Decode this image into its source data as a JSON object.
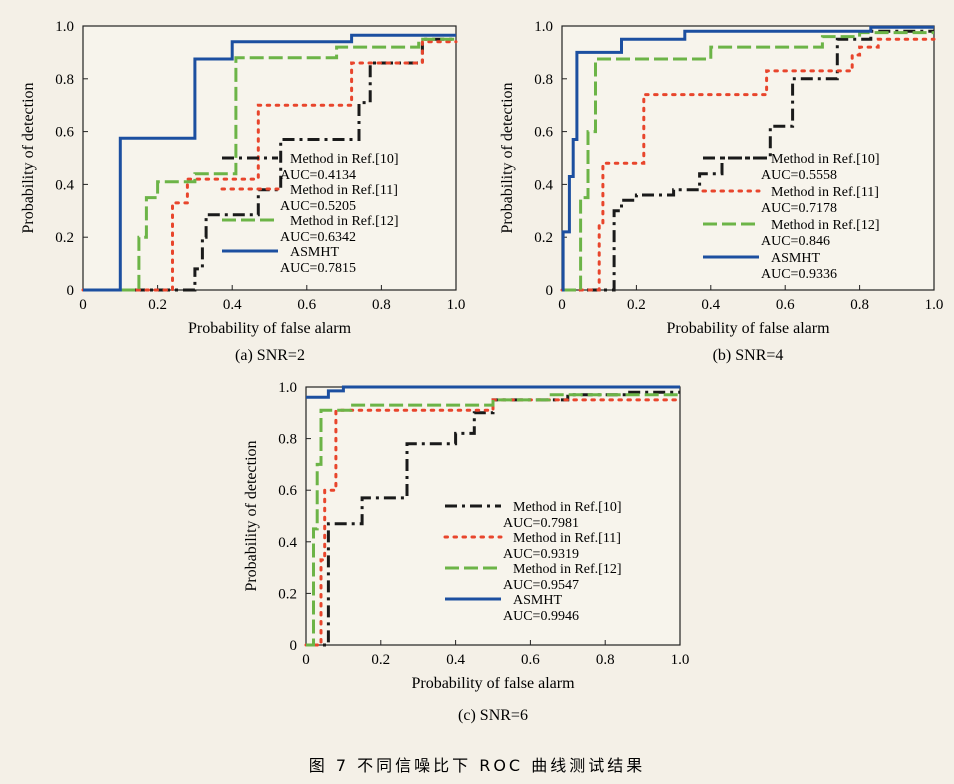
{
  "figure_caption": "图 7   不同信噪比下 ROC 曲线测试结果",
  "colors": {
    "ref10": "#1a1a1a",
    "ref11": "#e8452c",
    "ref12": "#6cb447",
    "asmht": "#1c4fa0",
    "frame": "#222222",
    "background": "#f4f0e7"
  },
  "chart_data": [
    {
      "type": "line",
      "caption": "(a) SNR=2",
      "xlabel": "Probability of false alarm",
      "ylabel": "Probability of detection",
      "xlim": [
        0,
        1
      ],
      "ylim": [
        0,
        1
      ],
      "xticks": [
        "0",
        "0.2",
        "0.4",
        "0.6",
        "0.8",
        "1.0"
      ],
      "yticks": [
        "0",
        "0.2",
        "0.4",
        "0.6",
        "0.8",
        "1.0"
      ],
      "grid": false,
      "legend_position": "right",
      "series": [
        {
          "name": "Method in Ref.[10]",
          "auc": "AUC=0.4134",
          "color_key": "ref10",
          "style": "dashdot",
          "points": [
            [
              0,
              0
            ],
            [
              0.3,
              0
            ],
            [
              0.3,
              0.08
            ],
            [
              0.32,
              0.08
            ],
            [
              0.32,
              0.2
            ],
            [
              0.33,
              0.2
            ],
            [
              0.33,
              0.285
            ],
            [
              0.47,
              0.285
            ],
            [
              0.47,
              0.38
            ],
            [
              0.53,
              0.38
            ],
            [
              0.53,
              0.57
            ],
            [
              0.74,
              0.57
            ],
            [
              0.74,
              0.71
            ],
            [
              0.77,
              0.71
            ],
            [
              0.77,
              0.86
            ],
            [
              0.91,
              0.86
            ],
            [
              0.91,
              0.95
            ],
            [
              1.0,
              0.95
            ]
          ]
        },
        {
          "name": "Method in Ref.[11]",
          "auc": "AUC=0.5205",
          "color_key": "ref11",
          "style": "dotted",
          "points": [
            [
              0,
              0
            ],
            [
              0.24,
              0
            ],
            [
              0.24,
              0.33
            ],
            [
              0.28,
              0.33
            ],
            [
              0.28,
              0.42
            ],
            [
              0.47,
              0.42
            ],
            [
              0.47,
              0.7
            ],
            [
              0.72,
              0.7
            ],
            [
              0.72,
              0.86
            ],
            [
              0.91,
              0.86
            ],
            [
              0.91,
              0.94
            ],
            [
              1.0,
              0.94
            ]
          ]
        },
        {
          "name": "Method in Ref.[12]",
          "auc": "AUC=0.6342",
          "color_key": "ref12",
          "style": "dashed",
          "points": [
            [
              0,
              0
            ],
            [
              0.15,
              0
            ],
            [
              0.15,
              0.2
            ],
            [
              0.17,
              0.2
            ],
            [
              0.17,
              0.35
            ],
            [
              0.2,
              0.35
            ],
            [
              0.2,
              0.41
            ],
            [
              0.3,
              0.41
            ],
            [
              0.3,
              0.44
            ],
            [
              0.41,
              0.44
            ],
            [
              0.41,
              0.88
            ],
            [
              0.68,
              0.88
            ],
            [
              0.68,
              0.92
            ],
            [
              0.9,
              0.92
            ],
            [
              0.9,
              0.95
            ],
            [
              1.0,
              0.95
            ]
          ]
        },
        {
          "name": "ASMHT",
          "auc": "AUC=0.7815",
          "color_key": "asmht",
          "style": "solid",
          "points": [
            [
              0,
              0
            ],
            [
              0.1,
              0
            ],
            [
              0.1,
              0.575
            ],
            [
              0.3,
              0.575
            ],
            [
              0.3,
              0.875
            ],
            [
              0.4,
              0.875
            ],
            [
              0.4,
              0.94
            ],
            [
              0.72,
              0.94
            ],
            [
              0.72,
              0.965
            ],
            [
              1.0,
              0.965
            ]
          ]
        }
      ]
    },
    {
      "type": "line",
      "caption": "(b) SNR=4",
      "xlabel": "Probability of false alarm",
      "ylabel": "Probability of detection",
      "xlim": [
        0,
        1
      ],
      "ylim": [
        0,
        1
      ],
      "xticks": [
        "0",
        "0.2",
        "0.4",
        "0.6",
        "0.8",
        "1.0"
      ],
      "yticks": [
        "0",
        "0.2",
        "0.4",
        "0.6",
        "0.8",
        "1.0"
      ],
      "grid": false,
      "legend_position": "right",
      "series": [
        {
          "name": "Method in Ref.[10]",
          "auc": "AUC=0.5558",
          "color_key": "ref10",
          "style": "dashdot",
          "points": [
            [
              0,
              0
            ],
            [
              0.14,
              0
            ],
            [
              0.14,
              0.3
            ],
            [
              0.16,
              0.3
            ],
            [
              0.16,
              0.34
            ],
            [
              0.2,
              0.34
            ],
            [
              0.2,
              0.36
            ],
            [
              0.3,
              0.36
            ],
            [
              0.3,
              0.38
            ],
            [
              0.37,
              0.38
            ],
            [
              0.37,
              0.44
            ],
            [
              0.43,
              0.44
            ],
            [
              0.43,
              0.5
            ],
            [
              0.56,
              0.5
            ],
            [
              0.56,
              0.62
            ],
            [
              0.62,
              0.62
            ],
            [
              0.62,
              0.8
            ],
            [
              0.74,
              0.8
            ],
            [
              0.74,
              0.95
            ],
            [
              0.83,
              0.95
            ],
            [
              0.83,
              0.98
            ],
            [
              1.0,
              0.98
            ]
          ]
        },
        {
          "name": "Method in Ref.[11]",
          "auc": "AUC=0.7178",
          "color_key": "ref11",
          "style": "dotted",
          "points": [
            [
              0,
              0
            ],
            [
              0.1,
              0
            ],
            [
              0.1,
              0.25
            ],
            [
              0.11,
              0.25
            ],
            [
              0.11,
              0.48
            ],
            [
              0.22,
              0.48
            ],
            [
              0.22,
              0.74
            ],
            [
              0.55,
              0.74
            ],
            [
              0.55,
              0.83
            ],
            [
              0.78,
              0.83
            ],
            [
              0.78,
              0.89
            ],
            [
              0.8,
              0.89
            ],
            [
              0.8,
              0.92
            ],
            [
              0.85,
              0.92
            ],
            [
              0.85,
              0.95
            ],
            [
              1.0,
              0.95
            ]
          ]
        },
        {
          "name": "Method in Ref.[12]",
          "auc": "AUC=0.846",
          "color_key": "ref12",
          "style": "dashed",
          "points": [
            [
              0,
              0
            ],
            [
              0.05,
              0
            ],
            [
              0.05,
              0.35
            ],
            [
              0.07,
              0.35
            ],
            [
              0.07,
              0.6
            ],
            [
              0.09,
              0.6
            ],
            [
              0.09,
              0.875
            ],
            [
              0.4,
              0.875
            ],
            [
              0.4,
              0.92
            ],
            [
              0.7,
              0.92
            ],
            [
              0.7,
              0.96
            ],
            [
              0.8,
              0.96
            ],
            [
              0.8,
              0.975
            ],
            [
              1.0,
              0.975
            ]
          ]
        },
        {
          "name": "ASMHT",
          "auc": "AUC=0.9336",
          "color_key": "asmht",
          "style": "solid",
          "points": [
            [
              0,
              0
            ],
            [
              0.003,
              0
            ],
            [
              0.003,
              0.22
            ],
            [
              0.02,
              0.22
            ],
            [
              0.02,
              0.43
            ],
            [
              0.03,
              0.43
            ],
            [
              0.03,
              0.57
            ],
            [
              0.04,
              0.57
            ],
            [
              0.04,
              0.9
            ],
            [
              0.16,
              0.9
            ],
            [
              0.16,
              0.95
            ],
            [
              0.33,
              0.95
            ],
            [
              0.33,
              0.98
            ],
            [
              0.83,
              0.98
            ],
            [
              0.83,
              0.995
            ],
            [
              1.0,
              0.995
            ]
          ]
        }
      ]
    },
    {
      "type": "line",
      "caption": "(c) SNR=6",
      "xlabel": "Probability of false alarm",
      "ylabel": "Probability of detection",
      "xlim": [
        0,
        1
      ],
      "ylim": [
        0,
        1
      ],
      "xticks": [
        "0",
        "0.2",
        "0.4",
        "0.6",
        "0.8",
        "1.0"
      ],
      "yticks": [
        "0",
        "0.2",
        "0.4",
        "0.6",
        "0.8",
        "1.0"
      ],
      "grid": false,
      "legend_position": "right",
      "series": [
        {
          "name": "Method in Ref.[10]",
          "auc": "AUC=0.7981",
          "color_key": "ref10",
          "style": "dashdot",
          "points": [
            [
              0,
              0
            ],
            [
              0.06,
              0
            ],
            [
              0.06,
              0.47
            ],
            [
              0.15,
              0.47
            ],
            [
              0.15,
              0.57
            ],
            [
              0.27,
              0.57
            ],
            [
              0.27,
              0.78
            ],
            [
              0.4,
              0.78
            ],
            [
              0.4,
              0.82
            ],
            [
              0.45,
              0.82
            ],
            [
              0.45,
              0.9
            ],
            [
              0.5,
              0.9
            ],
            [
              0.5,
              0.95
            ],
            [
              0.7,
              0.95
            ],
            [
              0.7,
              0.97
            ],
            [
              0.86,
              0.97
            ],
            [
              0.86,
              0.98
            ],
            [
              1.0,
              0.98
            ]
          ]
        },
        {
          "name": "Method in Ref.[11]",
          "auc": "AUC=0.9319",
          "color_key": "ref11",
          "style": "dotted",
          "points": [
            [
              0,
              0
            ],
            [
              0.04,
              0
            ],
            [
              0.04,
              0.33
            ],
            [
              0.05,
              0.33
            ],
            [
              0.05,
              0.6
            ],
            [
              0.08,
              0.6
            ],
            [
              0.08,
              0.91
            ],
            [
              0.5,
              0.91
            ],
            [
              0.5,
              0.95
            ],
            [
              1.0,
              0.95
            ]
          ]
        },
        {
          "name": "Method in Ref.[12]",
          "auc": "AUC=0.9547",
          "color_key": "ref12",
          "style": "dashed",
          "points": [
            [
              0,
              0
            ],
            [
              0.02,
              0
            ],
            [
              0.02,
              0.45
            ],
            [
              0.03,
              0.45
            ],
            [
              0.03,
              0.7
            ],
            [
              0.04,
              0.7
            ],
            [
              0.04,
              0.91
            ],
            [
              0.12,
              0.91
            ],
            [
              0.12,
              0.93
            ],
            [
              0.5,
              0.93
            ],
            [
              0.5,
              0.95
            ],
            [
              0.65,
              0.95
            ],
            [
              0.65,
              0.97
            ],
            [
              1.0,
              0.97
            ]
          ]
        },
        {
          "name": "ASMHT",
          "auc": "AUC=0.9946",
          "color_key": "asmht",
          "style": "solid",
          "points": [
            [
              0,
              0.96
            ],
            [
              0.06,
              0.96
            ],
            [
              0.06,
              0.985
            ],
            [
              0.1,
              0.985
            ],
            [
              0.1,
              1.0
            ],
            [
              1.0,
              1.0
            ]
          ]
        }
      ]
    }
  ]
}
